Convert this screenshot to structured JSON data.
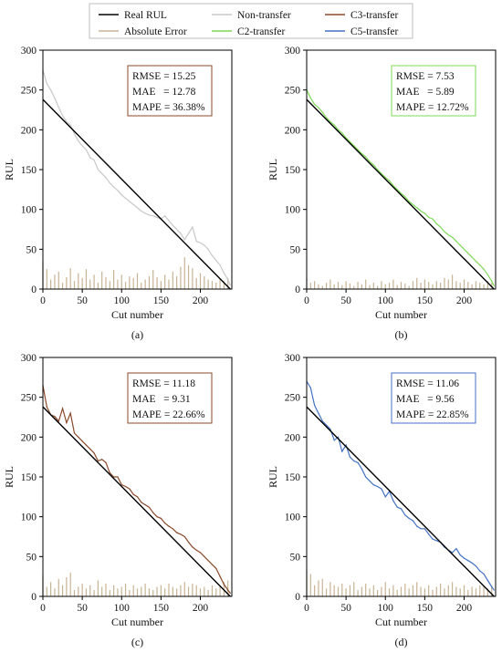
{
  "legend": [
    {
      "label": "Real RUL",
      "color": "#000000"
    },
    {
      "label": "Non-transfer",
      "color": "#c8c8c8"
    },
    {
      "label": "C3-transfer",
      "color": "#8b4a2b"
    },
    {
      "label": "Absolute Error",
      "color": "#c8b394"
    },
    {
      "label": "C2-transfer",
      "color": "#7ed957"
    },
    {
      "label": "C5-transfer",
      "color": "#4472c4"
    }
  ],
  "chart_data": [
    {
      "type": "line",
      "caption": "(a)",
      "xlabel": "Cut number",
      "ylabel": "RUL",
      "xlim": [
        0,
        240
      ],
      "ylim": [
        0,
        300
      ],
      "xticks": [
        0,
        50,
        100,
        150,
        200
      ],
      "yticks": [
        0,
        50,
        100,
        150,
        200,
        250,
        300
      ],
      "real_rul": {
        "x": [
          0,
          238
        ],
        "y": [
          238,
          0
        ]
      },
      "prediction_color": "#c8c8c8",
      "prediction": {
        "x": [
          0,
          5,
          10,
          15,
          20,
          25,
          30,
          35,
          40,
          45,
          50,
          55,
          60,
          65,
          70,
          75,
          80,
          85,
          90,
          95,
          100,
          105,
          110,
          115,
          120,
          125,
          130,
          135,
          140,
          145,
          150,
          155,
          160,
          165,
          170,
          175,
          180,
          185,
          190,
          195,
          200,
          205,
          210,
          215,
          220,
          225,
          230,
          235,
          238
        ],
        "y": [
          275,
          258,
          250,
          240,
          228,
          218,
          210,
          206,
          195,
          186,
          180,
          175,
          165,
          162,
          150,
          145,
          140,
          133,
          128,
          124,
          118,
          114,
          110,
          106,
          102,
          98,
          95,
          93,
          92,
          90,
          88,
          92,
          86,
          80,
          75,
          70,
          62,
          70,
          78,
          60,
          58,
          55,
          50,
          42,
          36,
          30,
          20,
          12,
          5
        ]
      },
      "error": {
        "x": [
          0,
          5,
          10,
          15,
          20,
          25,
          30,
          35,
          40,
          45,
          50,
          55,
          60,
          65,
          70,
          75,
          80,
          85,
          90,
          95,
          100,
          105,
          110,
          115,
          120,
          125,
          130,
          135,
          140,
          145,
          150,
          155,
          160,
          165,
          170,
          175,
          180,
          185,
          190,
          195,
          200,
          205,
          210,
          215,
          220,
          225,
          230,
          235
        ],
        "y": [
          35,
          25,
          12,
          18,
          22,
          8,
          15,
          26,
          10,
          20,
          14,
          25,
          12,
          18,
          8,
          22,
          15,
          10,
          24,
          12,
          18,
          9,
          16,
          14,
          20,
          8,
          12,
          16,
          24,
          15,
          10,
          18,
          12,
          22,
          16,
          28,
          40,
          30,
          26,
          14,
          20,
          16,
          12,
          10,
          8,
          12,
          10,
          14
        ]
      },
      "metrics": [
        "RMSE = 15.25",
        "MAE   = 12.78",
        "MAPE = 36.38%"
      ],
      "box_color": "#8b4a2b"
    },
    {
      "type": "line",
      "caption": "(b)",
      "xlabel": "Cut number",
      "ylabel": "RUL",
      "xlim": [
        0,
        240
      ],
      "ylim": [
        0,
        300
      ],
      "xticks": [
        0,
        50,
        100,
        150,
        200
      ],
      "yticks": [
        0,
        50,
        100,
        150,
        200,
        250,
        300
      ],
      "real_rul": {
        "x": [
          0,
          238
        ],
        "y": [
          238,
          0
        ]
      },
      "prediction_color": "#7ed957",
      "prediction": {
        "x": [
          0,
          5,
          10,
          15,
          20,
          25,
          30,
          35,
          40,
          45,
          50,
          55,
          60,
          65,
          70,
          75,
          80,
          85,
          90,
          95,
          100,
          105,
          110,
          115,
          120,
          125,
          130,
          135,
          140,
          145,
          150,
          155,
          160,
          165,
          170,
          175,
          180,
          185,
          190,
          195,
          200,
          205,
          210,
          215,
          220,
          225,
          230,
          235,
          238
        ],
        "y": [
          250,
          240,
          232,
          228,
          222,
          215,
          210,
          206,
          200,
          196,
          190,
          185,
          180,
          175,
          170,
          166,
          160,
          156,
          150,
          145,
          140,
          136,
          130,
          125,
          120,
          116,
          110,
          106,
          102,
          98,
          95,
          90,
          88,
          82,
          78,
          72,
          68,
          65,
          60,
          55,
          50,
          45,
          40,
          35,
          30,
          25,
          18,
          10,
          4
        ]
      },
      "error": {
        "x": [
          0,
          5,
          10,
          15,
          20,
          25,
          30,
          35,
          40,
          45,
          50,
          55,
          60,
          65,
          70,
          75,
          80,
          85,
          90,
          95,
          100,
          105,
          110,
          115,
          120,
          125,
          130,
          135,
          140,
          145,
          150,
          155,
          160,
          165,
          170,
          175,
          180,
          185,
          190,
          195,
          200,
          205,
          210,
          215,
          220,
          225,
          230,
          235
        ],
        "y": [
          14,
          8,
          10,
          6,
          4,
          8,
          12,
          6,
          9,
          5,
          10,
          7,
          4,
          9,
          6,
          12,
          5,
          8,
          4,
          10,
          6,
          8,
          12,
          5,
          9,
          7,
          4,
          10,
          14,
          8,
          12,
          9,
          6,
          10,
          8,
          14,
          12,
          18,
          10,
          8,
          12,
          9,
          6,
          10,
          8,
          6,
          10,
          8
        ]
      },
      "metrics": [
        "RMSE = 7.53",
        "MAE   = 5.89",
        "MAPE = 12.72%"
      ],
      "box_color": "#7ed957"
    },
    {
      "type": "line",
      "caption": "(c)",
      "xlabel": "Cut number",
      "ylabel": "RUL",
      "xlim": [
        0,
        240
      ],
      "ylim": [
        0,
        300
      ],
      "xticks": [
        0,
        50,
        100,
        150,
        200
      ],
      "yticks": [
        0,
        50,
        100,
        150,
        200,
        250,
        300
      ],
      "real_rul": {
        "x": [
          0,
          238
        ],
        "y": [
          238,
          0
        ]
      },
      "prediction_color": "#8b4a2b",
      "prediction": {
        "x": [
          0,
          5,
          10,
          15,
          20,
          25,
          30,
          35,
          40,
          45,
          50,
          55,
          60,
          65,
          70,
          75,
          80,
          85,
          90,
          95,
          100,
          105,
          110,
          115,
          120,
          125,
          130,
          135,
          140,
          145,
          150,
          155,
          160,
          165,
          170,
          175,
          180,
          185,
          190,
          195,
          200,
          205,
          210,
          215,
          220,
          225,
          230,
          235,
          238
        ],
        "y": [
          265,
          238,
          228,
          226,
          220,
          236,
          218,
          230,
          205,
          200,
          195,
          190,
          185,
          180,
          170,
          172,
          168,
          155,
          150,
          150,
          140,
          138,
          135,
          128,
          125,
          118,
          115,
          112,
          105,
          100,
          98,
          92,
          88,
          85,
          80,
          78,
          75,
          68,
          62,
          58,
          55,
          50,
          45,
          40,
          35,
          25,
          15,
          8,
          4
        ]
      },
      "error": {
        "x": [
          0,
          5,
          10,
          15,
          20,
          25,
          30,
          35,
          40,
          45,
          50,
          55,
          60,
          65,
          70,
          75,
          80,
          85,
          90,
          95,
          100,
          105,
          110,
          115,
          120,
          125,
          130,
          135,
          140,
          145,
          150,
          155,
          160,
          165,
          170,
          175,
          180,
          185,
          190,
          195,
          200,
          205,
          210,
          215,
          220,
          225,
          230,
          235
        ],
        "y": [
          26,
          12,
          18,
          10,
          22,
          14,
          24,
          30,
          8,
          12,
          16,
          10,
          14,
          8,
          20,
          12,
          16,
          8,
          14,
          10,
          12,
          16,
          8,
          14,
          10,
          12,
          16,
          10,
          8,
          12,
          14,
          10,
          16,
          12,
          10,
          14,
          18,
          12,
          16,
          14,
          10,
          12,
          8,
          14,
          10,
          12,
          18,
          20
        ]
      },
      "metrics": [
        "RMSE = 11.18",
        "MAE   = 9.31",
        "MAPE = 22.66%"
      ],
      "box_color": "#8b4a2b"
    },
    {
      "type": "line",
      "caption": "(d)",
      "xlabel": "Cut number",
      "ylabel": "RUL",
      "xlim": [
        0,
        240
      ],
      "ylim": [
        0,
        300
      ],
      "xticks": [
        0,
        50,
        100,
        150,
        200
      ],
      "yticks": [
        0,
        50,
        100,
        150,
        200,
        250,
        300
      ],
      "real_rul": {
        "x": [
          0,
          238
        ],
        "y": [
          238,
          0
        ]
      },
      "prediction_color": "#4472c4",
      "prediction": {
        "x": [
          0,
          5,
          10,
          15,
          20,
          25,
          30,
          35,
          40,
          45,
          50,
          55,
          60,
          65,
          70,
          75,
          80,
          85,
          90,
          95,
          100,
          105,
          110,
          115,
          120,
          125,
          130,
          135,
          140,
          145,
          150,
          155,
          160,
          165,
          170,
          175,
          180,
          185,
          190,
          195,
          200,
          205,
          210,
          215,
          220,
          225,
          230,
          235,
          238
        ],
        "y": [
          270,
          262,
          240,
          230,
          220,
          215,
          210,
          196,
          200,
          182,
          190,
          175,
          170,
          168,
          160,
          150,
          145,
          140,
          138,
          135,
          125,
          132,
          120,
          112,
          110,
          102,
          98,
          95,
          88,
          85,
          85,
          78,
          72,
          70,
          68,
          62,
          58,
          55,
          60,
          52,
          48,
          45,
          42,
          38,
          32,
          28,
          20,
          12,
          8
        ]
      },
      "error": {
        "x": [
          0,
          5,
          10,
          15,
          20,
          25,
          30,
          35,
          40,
          45,
          50,
          55,
          60,
          65,
          70,
          75,
          80,
          85,
          90,
          95,
          100,
          105,
          110,
          115,
          120,
          125,
          130,
          135,
          140,
          145,
          150,
          155,
          160,
          165,
          170,
          175,
          180,
          185,
          190,
          195,
          200,
          205,
          210,
          215,
          220,
          225,
          230,
          235
        ],
        "y": [
          35,
          28,
          14,
          20,
          22,
          10,
          18,
          14,
          12,
          16,
          10,
          14,
          18,
          8,
          12,
          16,
          10,
          14,
          8,
          12,
          18,
          10,
          14,
          8,
          12,
          16,
          10,
          14,
          18,
          12,
          10,
          14,
          8,
          12,
          16,
          10,
          14,
          18,
          12,
          10,
          14,
          8,
          12,
          10,
          14,
          12,
          10,
          14
        ]
      },
      "metrics": [
        "RMSE = 11.06",
        "MAE   = 9.56",
        "MAPE = 22.85%"
      ],
      "box_color": "#4472c4"
    }
  ]
}
